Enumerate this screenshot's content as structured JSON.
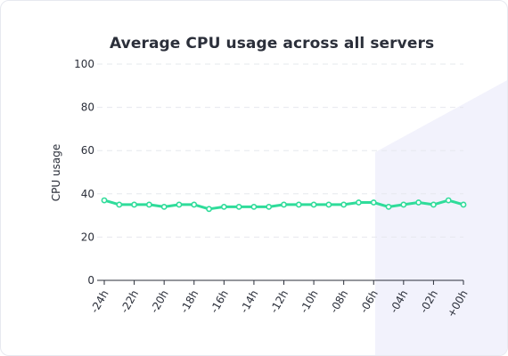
{
  "colors": {
    "line": "#2fdc9a",
    "grid": "#e6e8ee",
    "axis": "#2b2f3a",
    "background_accent": "#eeeefb"
  },
  "chart_data": {
    "type": "line",
    "title": "Average CPU usage across all servers",
    "xlabel": "",
    "ylabel": "CPU usage",
    "ylim": [
      0,
      100
    ],
    "yticks": [
      0,
      20,
      40,
      60,
      80,
      100
    ],
    "grid": true,
    "legend": "none",
    "xtick_labels": [
      "-24h",
      "-22h",
      "-20h",
      "-18h",
      "-16h",
      "-14h",
      "-12h",
      "-10h",
      "-08h",
      "-06h",
      "-04h",
      "-02h",
      "+00h"
    ],
    "x": [
      "-24h",
      "-23h",
      "-22h",
      "-21h",
      "-20h",
      "-19h",
      "-18h",
      "-17h",
      "-16h",
      "-15h",
      "-14h",
      "-13h",
      "-12h",
      "-11h",
      "-10h",
      "-09h",
      "-08h",
      "-07h",
      "-06h",
      "-05h",
      "-04h",
      "-03h",
      "-02h",
      "-01h",
      "+00h"
    ],
    "series": [
      {
        "values": [
          37,
          35,
          35,
          35,
          34,
          35,
          35,
          33,
          34,
          34,
          34,
          34,
          35,
          35,
          35,
          35,
          35,
          36,
          36,
          34,
          35,
          36,
          35,
          37,
          35
        ]
      }
    ]
  }
}
